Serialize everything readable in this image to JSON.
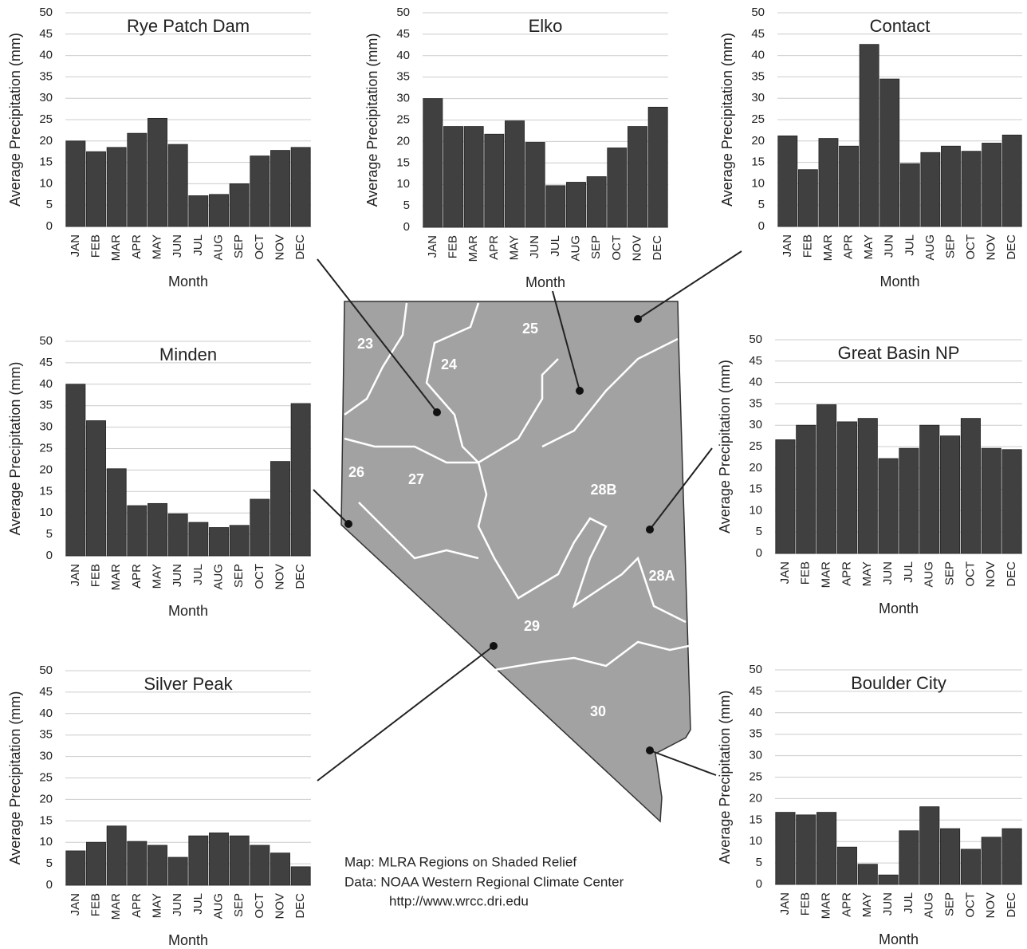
{
  "chart_data": [
    {
      "type": "bar",
      "title": "Rye Patch Dam",
      "y_label": "Average Precipitation (mm)",
      "x_label": "Month",
      "categories": [
        "JAN",
        "FEB",
        "MAR",
        "APR",
        "MAY",
        "JUN",
        "JUL",
        "AUG",
        "SEP",
        "OCT",
        "NOV",
        "DEC"
      ],
      "values": [
        20,
        17.5,
        18.5,
        21.8,
        25.3,
        19.2,
        7.2,
        7.5,
        10,
        16.5,
        17.8,
        18.5
      ],
      "color": "#404040",
      "ylim": [
        0,
        50
      ],
      "yticks": [
        0,
        5,
        10,
        15,
        20,
        25,
        30,
        35,
        40,
        45,
        50
      ],
      "grid": true
    },
    {
      "type": "bar",
      "title": "Elko",
      "y_label": "Average Precipitation (mm)",
      "x_label": "Month",
      "categories": [
        "JAN",
        "FEB",
        "MAR",
        "APR",
        "MAY",
        "JUN",
        "JUL",
        "AUG",
        "SEP",
        "OCT",
        "NOV",
        "DEC"
      ],
      "values": [
        30,
        23.5,
        23.5,
        21.7,
        24.8,
        19.8,
        9.7,
        10.5,
        11.8,
        18.5,
        23.5,
        28
      ],
      "color": "#404040",
      "ylim": [
        0,
        50
      ],
      "yticks": [
        0,
        5,
        10,
        15,
        20,
        25,
        30,
        35,
        40,
        45,
        50
      ],
      "grid": true
    },
    {
      "type": "bar",
      "title": "Contact",
      "y_label": "Average Precipitation (mm)",
      "x_label": "Month",
      "categories": [
        "JAN",
        "FEB",
        "MAR",
        "APR",
        "MAY",
        "JUN",
        "JUL",
        "AUG",
        "SEP",
        "OCT",
        "NOV",
        "DEC"
      ],
      "values": [
        21.2,
        13.3,
        20.6,
        18.8,
        42.6,
        34.5,
        14.7,
        17.3,
        18.8,
        17.6,
        19.5,
        21.4
      ],
      "color": "#404040",
      "ylim": [
        0,
        50
      ],
      "yticks": [
        0,
        5,
        10,
        15,
        20,
        25,
        30,
        35,
        40,
        45,
        50
      ],
      "grid": true
    },
    {
      "type": "bar",
      "title": "Minden",
      "y_label": "Average Precipitation (mm)",
      "x_label": "Month",
      "categories": [
        "JAN",
        "FEB",
        "MAR",
        "APR",
        "MAY",
        "JUN",
        "JUL",
        "AUG",
        "SEP",
        "OCT",
        "NOV",
        "DEC"
      ],
      "values": [
        40,
        31.5,
        20.3,
        11.7,
        12.2,
        9.8,
        7.8,
        6.6,
        7.1,
        13.2,
        22,
        35.5
      ],
      "color": "#404040",
      "ylim": [
        0,
        50
      ],
      "yticks": [
        0,
        5,
        10,
        15,
        20,
        25,
        30,
        35,
        40,
        45,
        50
      ],
      "grid": true
    },
    {
      "type": "bar",
      "title": "Great Basin NP",
      "y_label": "Average Precipitation (mm)",
      "x_label": "Month",
      "categories": [
        "JAN",
        "FEB",
        "MAR",
        "APR",
        "MAY",
        "JUN",
        "JUL",
        "AUG",
        "SEP",
        "OCT",
        "NOV",
        "DEC"
      ],
      "values": [
        26.6,
        30,
        34.8,
        30.8,
        31.6,
        22.2,
        24.6,
        30,
        27.5,
        31.6,
        24.6,
        24.3
      ],
      "color": "#404040",
      "ylim": [
        0,
        50
      ],
      "yticks": [
        0,
        5,
        10,
        15,
        20,
        25,
        30,
        35,
        40,
        45,
        50
      ],
      "grid": true
    },
    {
      "type": "bar",
      "title": "Silver Peak",
      "y_label": "Average Precipitation (mm)",
      "x_label": "Month",
      "categories": [
        "JAN",
        "FEB",
        "MAR",
        "APR",
        "MAY",
        "JUN",
        "JUL",
        "AUG",
        "SEP",
        "OCT",
        "NOV",
        "DEC"
      ],
      "values": [
        8,
        10,
        13.8,
        10.2,
        9.3,
        6.5,
        11.5,
        12.2,
        11.5,
        9.3,
        7.5,
        4.3
      ],
      "color": "#404040",
      "ylim": [
        0,
        50
      ],
      "yticks": [
        0,
        5,
        10,
        15,
        20,
        25,
        30,
        35,
        40,
        45,
        50
      ],
      "grid": true
    },
    {
      "type": "bar",
      "title": "Boulder City",
      "y_label": "Average Precipitation (mm)",
      "x_label": "Month",
      "categories": [
        "JAN",
        "FEB",
        "MAR",
        "APR",
        "MAY",
        "JUN",
        "JUL",
        "AUG",
        "SEP",
        "OCT",
        "NOV",
        "DEC"
      ],
      "values": [
        16.8,
        16.2,
        16.8,
        8.7,
        4.7,
        2.2,
        12.5,
        18.1,
        13,
        8.2,
        11,
        13
      ],
      "color": "#404040",
      "ylim": [
        0,
        50
      ],
      "yticks": [
        0,
        5,
        10,
        15,
        20,
        25,
        30,
        35,
        40,
        45,
        50
      ],
      "grid": true
    }
  ],
  "map": {
    "labels": [
      "23",
      "24",
      "25",
      "26",
      "27",
      "28B",
      "28A",
      "29",
      "30"
    ]
  },
  "caption": {
    "map": "Map: MLRA Regions on Shaded Relief",
    "data": "Data: NOAA Western Regional Climate Center",
    "url": "http://www.wrcc.dri.edu"
  }
}
